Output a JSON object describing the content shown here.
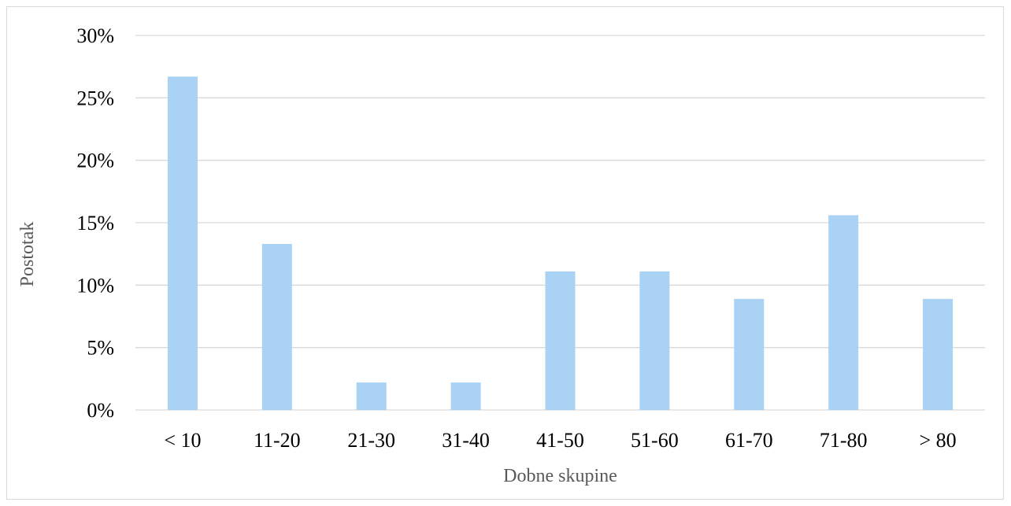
{
  "chart_data": {
    "type": "bar",
    "categories": [
      "< 10",
      "11-20",
      "21-30",
      "31-40",
      "41-50",
      "51-60",
      "61-70",
      "71-80",
      "> 80"
    ],
    "values": [
      26.7,
      13.3,
      2.2,
      2.2,
      11.1,
      11.1,
      8.9,
      15.6,
      8.9
    ],
    "xlabel": "Dobne skupine",
    "ylabel": "Postotak",
    "ylim": [
      0,
      30
    ],
    "yticks": [
      0,
      5,
      10,
      15,
      20,
      25,
      30
    ],
    "ytick_labels": [
      "0%",
      "5%",
      "10%",
      "15%",
      "20%",
      "25%",
      "30%"
    ],
    "grid": true,
    "legend": "none",
    "colors": {
      "bar": "#a9d2f5",
      "grid": "#d9d9d9",
      "axis_title": "#595959"
    }
  }
}
